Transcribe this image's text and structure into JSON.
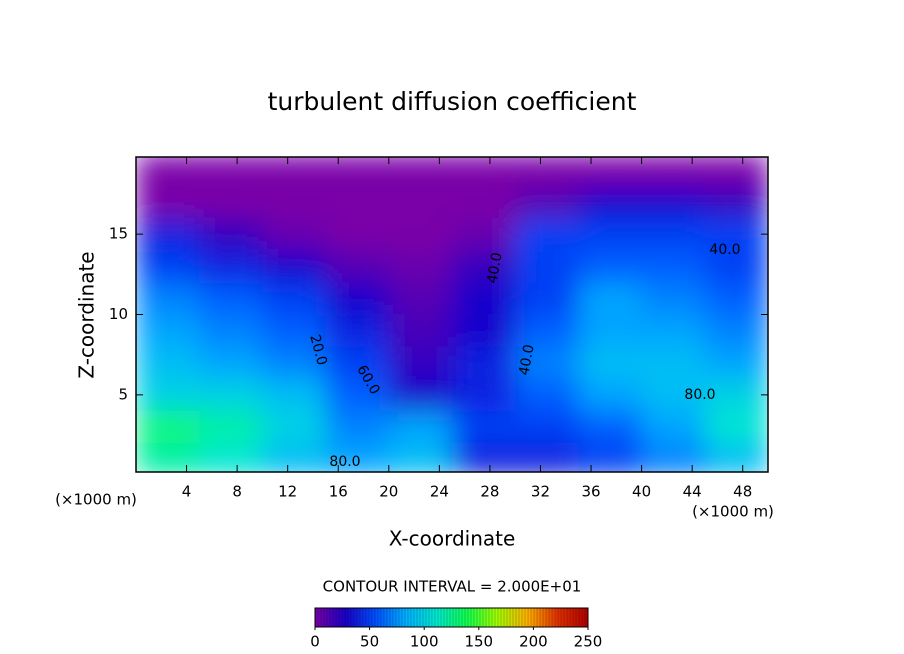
{
  "chart_data": {
    "type": "heatmap",
    "title": "turbulent diffusion coefficient",
    "x_label": "X-coordinate",
    "y_label": "Z-coordinate",
    "x_unit": "(×1000 m)",
    "colorbar_title": "CONTOUR INTERVAL = 2.000E+01",
    "xlim": [
      0,
      50
    ],
    "xticks": [
      4,
      8,
      12,
      16,
      20,
      24,
      28,
      32,
      36,
      40,
      44,
      48
    ],
    "ylim": [
      0.2,
      19.8
    ],
    "yticks": [
      5,
      10,
      15
    ],
    "x": [
      2.5,
      7.5,
      12.5,
      17.5,
      22.5,
      27.5,
      32.5,
      37.5,
      42.5,
      47.5
    ],
    "z": [
      19,
      17,
      15,
      13,
      11,
      9,
      7,
      5,
      3,
      1
    ],
    "values": [
      [
        0,
        0,
        0,
        0,
        0,
        0,
        0,
        0,
        0,
        0
      ],
      [
        0,
        0,
        0,
        0,
        0,
        0,
        10,
        30,
        30,
        20
      ],
      [
        40,
        20,
        5,
        0,
        0,
        5,
        50,
        50,
        50,
        50
      ],
      [
        50,
        40,
        30,
        10,
        5,
        20,
        50,
        60,
        60,
        50
      ],
      [
        70,
        60,
        50,
        30,
        10,
        30,
        50,
        80,
        70,
        60
      ],
      [
        80,
        70,
        60,
        40,
        15,
        30,
        60,
        80,
        80,
        70
      ],
      [
        90,
        80,
        70,
        50,
        20,
        40,
        70,
        90,
        90,
        80
      ],
      [
        100,
        100,
        90,
        60,
        30,
        40,
        60,
        80,
        90,
        100
      ],
      [
        130,
        120,
        100,
        70,
        80,
        50,
        50,
        60,
        80,
        110
      ],
      [
        120,
        110,
        90,
        80,
        90,
        40,
        40,
        50,
        70,
        90
      ]
    ],
    "clim": [
      0,
      250
    ],
    "cticks": [
      0,
      50,
      100,
      150,
      200,
      250
    ],
    "colormap": [
      "#7a00a8",
      "#1a00c8",
      "#0050ff",
      "#00b0ff",
      "#00e8d0",
      "#10ff50",
      "#a0ff00",
      "#ffb000",
      "#e03000",
      "#b00000"
    ],
    "contour_labels": [
      "40.0",
      "80.0",
      "80.0",
      "20.0",
      "40.0",
      "40.0",
      "60.0"
    ]
  }
}
